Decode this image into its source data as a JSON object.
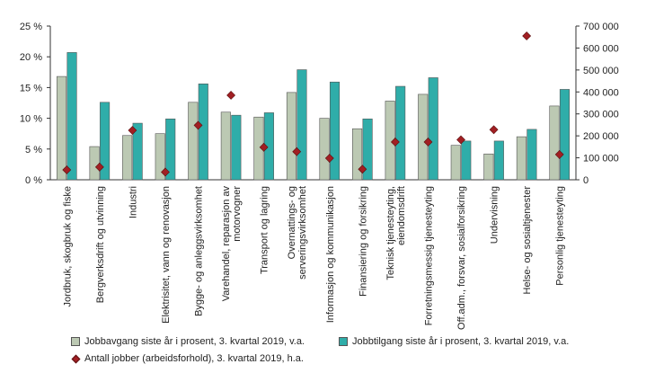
{
  "chart_data": {
    "type": "bar",
    "categories": [
      [
        "Jordbruk, skogbruk og fiske"
      ],
      [
        "Bergverksdrift og utvinning"
      ],
      [
        "Industri"
      ],
      [
        "Elektrisitet, vann og renovasjon"
      ],
      [
        "Bygge- og anleggsvirksomhet"
      ],
      [
        "Varehandel, reparasjon av",
        "motorvogner"
      ],
      [
        "Transport og lagring"
      ],
      [
        "Overnattings- og",
        "serveringsvirksomhet"
      ],
      [
        "Informasjon og kommunikasjon"
      ],
      [
        "Finansiering og forsikring"
      ],
      [
        "Teknisk tjenesteyting,",
        "eiendomsdrift"
      ],
      [
        "Forretningsmessig tjenesteyting"
      ],
      [
        "Off.adm., forsvar, sosialforsikring"
      ],
      [
        "Undervisning"
      ],
      [
        "Helse- og sosialtjenester"
      ],
      [
        "Personlig tjenesteyting"
      ]
    ],
    "series": [
      {
        "name": "Jobbavgang siste år i prosent, 3. kvartal 2019, v.a.",
        "axis": "left",
        "color": "#bcc9b3",
        "values": [
          16.8,
          5.4,
          7.2,
          7.5,
          12.6,
          11.0,
          10.2,
          14.2,
          10.0,
          8.3,
          12.8,
          13.9,
          5.6,
          4.2,
          7.0,
          12.0
        ]
      },
      {
        "name": "Jobbtilgang siste år i prosent, 3. kvartal 2019, v.a.",
        "axis": "left",
        "color": "#2fada9",
        "values": [
          20.7,
          12.6,
          9.2,
          9.9,
          15.6,
          10.5,
          10.9,
          17.9,
          15.9,
          9.9,
          15.2,
          16.6,
          6.3,
          6.3,
          8.2,
          14.7
        ]
      },
      {
        "name": "Antall jobber (arbeidsforhold), 3. kvartal 2019, h.a.",
        "axis": "right",
        "type": "scatter",
        "marker": "diamond",
        "color": "#a11f23",
        "values": [
          45000,
          58000,
          225000,
          35000,
          248000,
          385000,
          148000,
          128000,
          98000,
          48000,
          172000,
          172000,
          182000,
          228000,
          655000,
          115000
        ]
      }
    ],
    "y_left": {
      "min": 0,
      "max": 25,
      "step": 5,
      "tick_labels": [
        "0 %",
        "5 %",
        "10 %",
        "15 %",
        "20 %",
        "25 %"
      ]
    },
    "y_right": {
      "min": 0,
      "max": 700000,
      "step": 100000,
      "tick_labels": [
        "0",
        "100 000",
        "200 000",
        "300 000",
        "400 000",
        "500 000",
        "600 000",
        "700 000"
      ]
    },
    "grid": false,
    "legend": "bottom"
  }
}
